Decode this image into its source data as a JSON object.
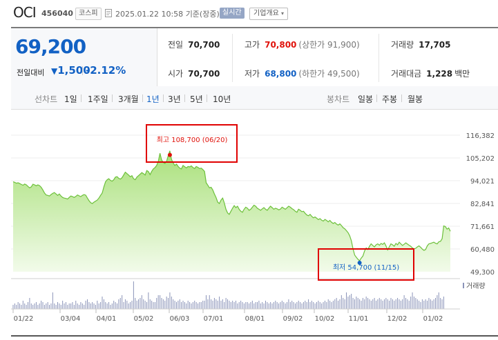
{
  "header": {
    "company_name": "OCI",
    "stock_code": "456040",
    "market": "코스피",
    "timestamp": "2025.01.22 10:58",
    "basis": "기준(장중)",
    "realtime_badge": "실시간",
    "overview_button": "기업개요"
  },
  "quote": {
    "current_price": "69,200",
    "change_label": "전일대비",
    "change_arrow": "▼",
    "change_value": "1,500",
    "change_percent": "-2.12%",
    "prev_close_label": "전일",
    "prev_close": "70,700",
    "open_label": "시가",
    "open": "70,700",
    "high_label": "고가",
    "high": "70,800",
    "upper_limit": "(상한가 91,900)",
    "low_label": "저가",
    "low": "68,800",
    "lower_limit": "(하한가 49,500)",
    "volume_label": "거래량",
    "volume": "17,705",
    "trade_value_label": "거래대금",
    "trade_value": "1,228",
    "trade_value_unit": "백만"
  },
  "periods": {
    "line_chart_label": "선차트",
    "line_options": [
      "1일",
      "1주일",
      "3개월",
      "1년",
      "3년",
      "5년",
      "10년"
    ],
    "active": "1년",
    "candle_chart_label": "봉차트",
    "candle_options": [
      "일봉",
      "주봉",
      "월봉"
    ]
  },
  "colors": {
    "rise": "#e0120b",
    "fall": "#1261c4",
    "area_line": "#6cc03a",
    "area_fill": "#c9eeaa",
    "annotation_box": "#e00000"
  },
  "chart_data": {
    "type": "area",
    "x_ticks": [
      "01/22",
      "03/04",
      "04/01",
      "05/02",
      "06/03",
      "07/01",
      "08/01",
      "09/02",
      "10/02",
      "11/01",
      "12/02",
      "01/02"
    ],
    "y_ticks": [
      "116,382",
      "105,202",
      "94,021",
      "82,841",
      "71,661",
      "60,480",
      "49,300"
    ],
    "ylim": [
      49300,
      116382
    ],
    "volume_label": "거래량",
    "high_annotation": "최고 108,700 (06/20)",
    "low_annotation": "최저 54,700 (11/15)",
    "high_value": 108700,
    "low_value": 54700,
    "series": [
      {
        "values": [
          93500,
          93200,
          92800,
          93000,
          92600,
          92200,
          91800,
          92400,
          92000,
          91200,
          90500,
          91000,
          92300,
          92000,
          91500,
          92000,
          91600,
          90800,
          89500,
          88000,
          87000,
          86800,
          86500,
          87200,
          87800,
          88200,
          87500,
          86800,
          87500,
          86500,
          85800,
          85500,
          85300,
          85000,
          85800,
          86500,
          86200,
          85800,
          86300,
          87000,
          86600,
          86200,
          86800,
          87200,
          86900,
          85500,
          84200,
          83200,
          82800,
          83500,
          84000,
          84500,
          85500,
          86800,
          88000,
          91000,
          93500,
          94500,
          95000,
          94200,
          93800,
          94500,
          95800,
          96000,
          95200,
          94800,
          95500,
          96800,
          98200,
          97500,
          96800,
          96000,
          96500,
          95000,
          94500,
          95800,
          96500,
          97200,
          98000,
          97500,
          96800,
          99000,
          98500,
          97000,
          98600,
          99800,
          100500,
          101500,
          103500,
          107500,
          104200,
          103000,
          102500,
          103500,
          106200,
          108700,
          104500,
          102800,
          101500,
          102200,
          101000,
          100200,
          99800,
          101500,
          100900,
          100300,
          101000,
          100800,
          101300,
          100500,
          100000,
          101000,
          100600,
          100000,
          100200,
          99500,
          98600,
          93000,
          91800,
          90500,
          90800,
          89500,
          87500,
          85800,
          83500,
          82800,
          84500,
          85500,
          83000,
          80000,
          78200,
          77500,
          79000,
          80500,
          81800,
          80800,
          81500,
          80000,
          79000,
          78500,
          80000,
          81000,
          80500,
          79500,
          80000,
          81000,
          82000,
          81500,
          80500,
          80000,
          79500,
          80200,
          80800,
          80000,
          79500,
          80500,
          81500,
          80800,
          80000,
          80500,
          80200,
          79700,
          80100,
          81000,
          80500,
          80000,
          80700,
          81500,
          81000,
          80300,
          79800,
          79000,
          78500,
          80000,
          79500,
          78800,
          79000,
          78000,
          77200,
          76800,
          77500,
          76500,
          75800,
          76200,
          75600,
          74900,
          75400,
          74600,
          74200,
          75000,
          74500,
          73800,
          74500,
          73600,
          73000,
          73500,
          72700,
          72200,
          72800,
          72000,
          71000,
          70400,
          69500,
          68500,
          67000,
          64500,
          60500,
          57500,
          56400,
          55400,
          54700,
          56000,
          57000,
          59500,
          61000,
          60200,
          61800,
          63000,
          62200,
          61500,
          62500,
          63000,
          62300,
          63200,
          62700,
          63500,
          62000,
          60000,
          61500,
          63000,
          62500,
          61800,
          63200,
          62500,
          63800,
          63000,
          62200,
          62800,
          63500,
          62900,
          62300,
          61800,
          61000,
          60500,
          60800,
          61500,
          62000,
          61300,
          60400,
          59800,
          60200,
          62000,
          63000,
          63200,
          63500,
          63800,
          63300,
          63000,
          64000,
          64200,
          65500,
          71800,
          71500,
          70200,
          70800,
          69200
        ]
      },
      {
        "name": "거래량",
        "values": [
          0.03,
          0.04,
          0.03,
          0.05,
          0.04,
          0.03,
          0.06,
          0.04,
          0.03,
          0.05,
          0.08,
          0.04,
          0.03,
          0.04,
          0.05,
          0.03,
          0.04,
          0.06,
          0.05,
          0.03,
          0.04,
          0.05,
          0.03,
          0.04,
          0.12,
          0.04,
          0.03,
          0.05,
          0.04,
          0.03,
          0.06,
          0.04,
          0.05,
          0.03,
          0.04,
          0.04,
          0.05,
          0.03,
          0.06,
          0.04,
          0.03,
          0.05,
          0.04,
          0.03,
          0.06,
          0.07,
          0.05,
          0.04,
          0.05,
          0.04,
          0.03,
          0.06,
          0.04,
          0.05,
          0.09,
          0.07,
          0.05,
          0.04,
          0.05,
          0.03,
          0.04,
          0.06,
          0.05,
          0.04,
          0.07,
          0.08,
          0.1,
          0.05,
          0.07,
          0.06,
          0.04,
          0.05,
          0.06,
          0.2,
          0.08,
          0.06,
          0.07,
          0.08,
          0.1,
          0.07,
          0.06,
          0.05,
          0.12,
          0.07,
          0.06,
          0.05,
          0.05,
          0.08,
          0.1,
          0.1,
          0.08,
          0.07,
          0.06,
          0.09,
          0.08,
          0.12,
          0.09,
          0.07,
          0.06,
          0.05,
          0.06,
          0.07,
          0.05,
          0.06,
          0.05,
          0.04,
          0.06,
          0.05,
          0.04,
          0.05,
          0.06,
          0.05,
          0.04,
          0.05,
          0.05,
          0.06,
          0.06,
          0.1,
          0.07,
          0.1,
          0.07,
          0.06,
          0.08,
          0.07,
          0.06,
          0.09,
          0.06,
          0.07,
          0.05,
          0.08,
          0.07,
          0.06,
          0.05,
          0.06,
          0.05,
          0.06,
          0.04,
          0.05,
          0.06,
          0.05,
          0.04,
          0.05,
          0.05,
          0.04,
          0.05,
          0.06,
          0.04,
          0.05,
          0.05,
          0.06,
          0.04,
          0.05,
          0.04,
          0.06,
          0.05,
          0.04,
          0.05,
          0.04,
          0.05,
          0.06,
          0.05,
          0.04,
          0.05,
          0.06,
          0.05,
          0.04,
          0.05,
          0.07,
          0.05,
          0.06,
          0.05,
          0.04,
          0.05,
          0.06,
          0.05,
          0.04,
          0.05,
          0.06,
          0.05,
          0.07,
          0.05,
          0.06,
          0.05,
          0.04,
          0.05,
          0.06,
          0.05,
          0.04,
          0.05,
          0.06,
          0.05,
          0.07,
          0.06,
          0.05,
          0.06,
          0.07,
          0.08,
          0.06,
          0.07,
          0.1,
          0.08,
          0.07,
          0.12,
          0.09,
          0.1,
          0.11,
          0.08,
          0.07,
          0.09,
          0.08,
          0.07,
          0.06,
          0.08,
          0.07,
          0.09,
          0.08,
          0.07,
          0.06,
          0.07,
          0.08,
          0.06,
          0.07,
          0.08,
          0.07,
          0.06,
          0.07,
          0.08,
          0.07,
          0.06,
          0.08,
          0.07,
          0.06,
          0.07,
          0.08,
          0.07,
          0.06,
          0.07,
          0.1,
          0.08,
          0.07,
          0.06,
          0.09,
          0.12,
          0.09,
          0.08,
          0.07,
          0.06,
          0.05,
          0.07,
          0.06,
          0.07,
          0.06,
          0.08,
          0.07,
          0.06,
          0.07,
          0.08,
          0.1,
          0.12,
          0.08,
          0.07,
          0.09
        ]
      }
    ]
  }
}
